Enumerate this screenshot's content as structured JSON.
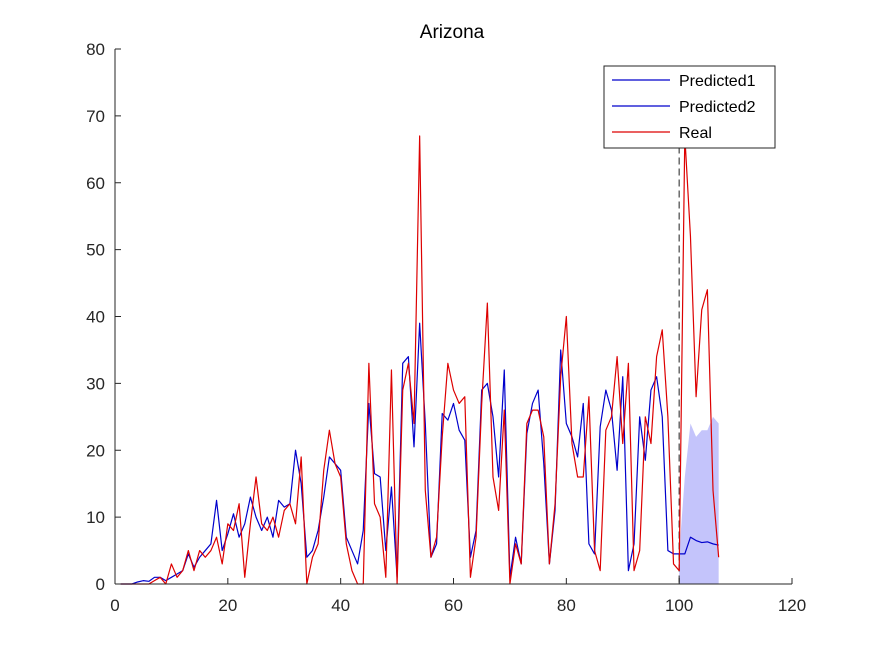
{
  "chart_data": {
    "type": "line",
    "title": "Arizona",
    "xlabel": "",
    "ylabel": "",
    "xlim": [
      0,
      120
    ],
    "ylim": [
      0,
      80
    ],
    "xticks": [
      "0",
      "20",
      "40",
      "60",
      "80",
      "100",
      "120"
    ],
    "yticks": [
      "0",
      "10",
      "20",
      "30",
      "40",
      "50",
      "60",
      "70",
      "80"
    ],
    "xtick_values": [
      0,
      20,
      40,
      60,
      80,
      100,
      120
    ],
    "ytick_values": [
      0,
      10,
      20,
      30,
      40,
      50,
      60,
      70,
      80
    ],
    "grid": false,
    "legend_placement": "top-right",
    "forecast_start_x": 100,
    "series": [
      {
        "name": "Predicted1",
        "color": "#0000cc",
        "x": [
          1,
          2,
          3,
          4,
          5,
          6,
          7,
          8,
          9,
          10,
          11,
          12,
          13,
          14,
          15,
          16,
          17,
          18,
          19,
          20,
          21,
          22,
          23,
          24,
          25,
          26,
          27,
          28,
          29,
          30,
          31,
          32,
          33,
          34,
          35,
          36,
          37,
          38,
          39,
          40,
          41,
          42,
          43,
          44,
          45,
          46,
          47,
          48,
          49,
          50,
          51,
          52,
          53,
          54,
          55,
          56,
          57,
          58,
          59,
          60,
          61,
          62,
          63,
          64,
          65,
          66,
          67,
          68,
          69,
          70,
          71,
          72,
          73,
          74,
          75,
          76,
          77,
          78,
          79,
          80,
          81,
          82,
          83,
          84,
          85,
          86,
          87,
          88,
          89,
          90,
          91,
          92,
          93,
          94,
          95,
          96,
          97,
          98,
          99,
          100
        ],
        "values": [
          0,
          0,
          0,
          0.3,
          0.5,
          0.4,
          1,
          1,
          0.5,
          1,
          1.5,
          2,
          4.5,
          2.5,
          4,
          5,
          6,
          12.5,
          5,
          7.5,
          10.5,
          7,
          9,
          13,
          10,
          8,
          10,
          7,
          12.5,
          11.5,
          12,
          20,
          15,
          4,
          5,
          8,
          13,
          19,
          18,
          17,
          7,
          5,
          3,
          8,
          27,
          16.5,
          16,
          5,
          14.5,
          1,
          33,
          34,
          20.5,
          39,
          24,
          4,
          6,
          25.5,
          24.5,
          27,
          23,
          21.5,
          4,
          8,
          29,
          30,
          25,
          16,
          32,
          1,
          7,
          3,
          22.5,
          27,
          29,
          18,
          3,
          11,
          35,
          24,
          22,
          19,
          27,
          6,
          4.5,
          23.5,
          29,
          26,
          17,
          31,
          2,
          6,
          25,
          18.5,
          29,
          31,
          25,
          5,
          4.5,
          4.5
        ]
      },
      {
        "name": "Predicted2",
        "color": "#0000cc",
        "x": [
          100,
          101,
          102,
          103,
          104,
          105,
          106,
          107
        ],
        "values": [
          4.5,
          4.5,
          7,
          6.5,
          6.2,
          6.3,
          6,
          5.8
        ],
        "band": {
          "x": [
            100,
            101,
            102,
            103,
            104,
            105,
            106,
            107
          ],
          "lower": [
            0,
            0,
            0,
            0,
            0,
            0,
            0,
            0
          ],
          "upper": [
            4.5,
            16,
            24,
            22,
            23,
            23,
            25,
            24
          ]
        }
      },
      {
        "name": "Real",
        "color": "#dd0000",
        "x": [
          1,
          2,
          3,
          4,
          5,
          6,
          7,
          8,
          9,
          10,
          11,
          12,
          13,
          14,
          15,
          16,
          17,
          18,
          19,
          20,
          21,
          22,
          23,
          24,
          25,
          26,
          27,
          28,
          29,
          30,
          31,
          32,
          33,
          34,
          35,
          36,
          37,
          38,
          39,
          40,
          41,
          42,
          43,
          44,
          45,
          46,
          47,
          48,
          49,
          50,
          51,
          52,
          53,
          54,
          55,
          56,
          57,
          58,
          59,
          60,
          61,
          62,
          63,
          64,
          65,
          66,
          67,
          68,
          69,
          70,
          71,
          72,
          73,
          74,
          75,
          76,
          77,
          78,
          79,
          80,
          81,
          82,
          83,
          84,
          85,
          86,
          87,
          88,
          89,
          90,
          91,
          92,
          93,
          94,
          95,
          96,
          97,
          98,
          99,
          100,
          101,
          102,
          103,
          104,
          105,
          106,
          107
        ],
        "values": [
          0,
          0,
          0,
          0,
          0,
          0,
          0.5,
          1,
          0,
          3,
          1,
          2,
          5,
          2,
          5,
          4,
          5,
          7,
          3,
          9,
          8,
          12,
          1,
          9,
          16,
          9,
          8,
          10,
          7,
          11,
          12,
          9,
          19,
          0,
          4,
          6,
          17,
          23,
          18,
          16,
          6,
          2,
          0,
          0,
          33,
          12,
          10,
          1,
          32,
          0,
          29,
          33,
          24,
          67,
          14,
          4,
          7,
          22,
          33,
          29,
          27,
          28,
          1,
          7,
          27,
          42,
          16,
          11,
          26,
          0,
          6,
          3,
          24,
          26,
          26,
          22,
          3,
          12,
          31,
          40,
          21,
          16,
          16,
          28,
          5,
          2,
          23,
          25,
          34,
          21,
          33,
          2,
          5,
          25,
          21,
          34,
          38,
          25,
          3,
          2,
          67,
          52,
          28,
          41,
          44,
          14,
          4
        ]
      }
    ]
  }
}
